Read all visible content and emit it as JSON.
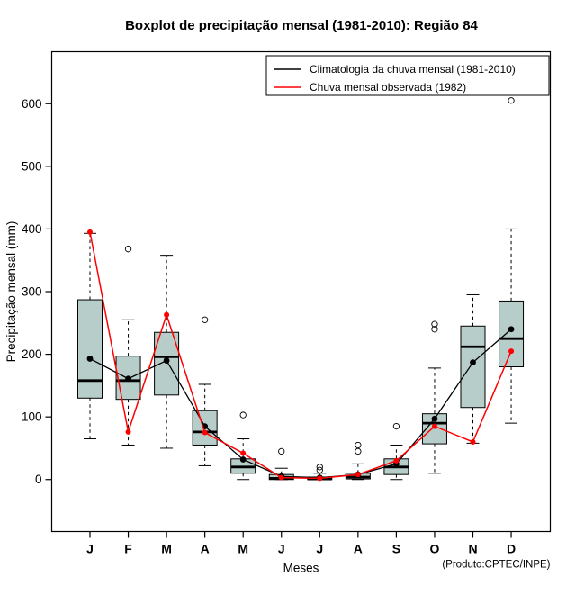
{
  "title": "Boxplot de precipitação mensal (1981-2010): Região 84",
  "x_label": "Meses",
  "y_label": "Precipitação mensal (mm)",
  "credit": "(Produto:CPTEC/INPE)",
  "legend": {
    "items": [
      {
        "label": "Climatologia da chuva mensal (1981-2010)",
        "color": "#000000"
      },
      {
        "label": "Chuva mensal observada (1982)",
        "color": "#ff0000"
      }
    ]
  },
  "colors": {
    "box_fill": "#b7cdc9",
    "box_stroke": "#000000",
    "climatology_line": "#000000",
    "observed_line": "#ff0000"
  },
  "chart_data": {
    "type": "boxplot+line",
    "title": "Boxplot de precipitação mensal (1981-2010): Região 84",
    "xlabel": "Meses",
    "ylabel": "Precipitação mensal (mm)",
    "categories": [
      "J",
      "F",
      "M",
      "A",
      "M",
      "J",
      "J",
      "A",
      "S",
      "O",
      "N",
      "D"
    ],
    "y_ticks": [
      0,
      100,
      200,
      300,
      400,
      500,
      600
    ],
    "ylim": [
      -83,
      683
    ],
    "legend_position": "top-right",
    "boxes": [
      {
        "whislo": 65,
        "q1": 130,
        "med": 158,
        "q3": 287,
        "whishi": 393,
        "outliers": []
      },
      {
        "whislo": 55,
        "q1": 128,
        "med": 158,
        "q3": 197,
        "whishi": 255,
        "outliers": [
          368
        ]
      },
      {
        "whislo": 50,
        "q1": 135,
        "med": 196,
        "q3": 235,
        "whishi": 358,
        "outliers": []
      },
      {
        "whislo": 22,
        "q1": 55,
        "med": 76,
        "q3": 110,
        "whishi": 152,
        "outliers": [
          255
        ]
      },
      {
        "whislo": 0,
        "q1": 10,
        "med": 20,
        "q3": 33,
        "whishi": 65,
        "outliers": [
          103
        ]
      },
      {
        "whislo": 0,
        "q1": 0,
        "med": 2,
        "q3": 8,
        "whishi": 18,
        "outliers": [
          45
        ]
      },
      {
        "whislo": 0,
        "q1": 0,
        "med": 1,
        "q3": 4,
        "whishi": 10,
        "outliers": [
          15,
          20
        ]
      },
      {
        "whislo": 0,
        "q1": 1,
        "med": 4,
        "q3": 10,
        "whishi": 25,
        "outliers": [
          45,
          55
        ]
      },
      {
        "whislo": 0,
        "q1": 8,
        "med": 20,
        "q3": 33,
        "whishi": 55,
        "outliers": [
          85
        ]
      },
      {
        "whislo": 10,
        "q1": 57,
        "med": 90,
        "q3": 105,
        "whishi": 178,
        "outliers": [
          240,
          248
        ]
      },
      {
        "whislo": 58,
        "q1": 115,
        "med": 212,
        "q3": 245,
        "whishi": 295,
        "outliers": []
      },
      {
        "whislo": 90,
        "q1": 180,
        "med": 225,
        "q3": 285,
        "whishi": 400,
        "outliers": [
          605
        ]
      }
    ],
    "series": [
      {
        "name": "Climatologia da chuva mensal (1981-2010)",
        "color": "#000000",
        "values": [
          193,
          161,
          190,
          85,
          32,
          5,
          3,
          8,
          25,
          97,
          187,
          240
        ]
      },
      {
        "name": "Chuva mensal observada (1982)",
        "color": "#ff0000",
        "values": [
          395,
          76,
          263,
          75,
          42,
          3,
          2,
          8,
          30,
          85,
          60,
          205
        ]
      }
    ]
  }
}
